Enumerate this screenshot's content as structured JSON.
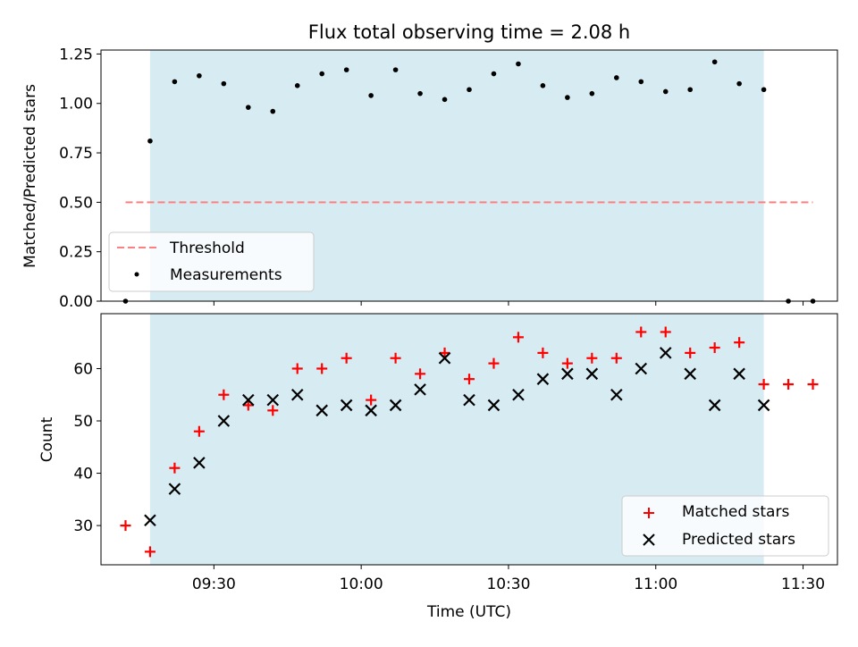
{
  "chart_data": [
    {
      "type": "scatter",
      "title": "Flux total observing time = 2.08 h",
      "ylabel": "Matched/Predicted stars",
      "xlabel": "",
      "xlim": [
        "09:07",
        "11:37"
      ],
      "ylim": [
        0,
        1.27
      ],
      "yticks": [
        "0.00",
        "0.25",
        "0.50",
        "0.75",
        "1.00",
        "1.25"
      ],
      "ytick_values": [
        0,
        0.25,
        0.5,
        0.75,
        1.0,
        1.25
      ],
      "xtick_values": [
        "09:30",
        "10:00",
        "10:30",
        "11:00",
        "11:30"
      ],
      "shaded_span": [
        "09:17",
        "11:22"
      ],
      "shade_color": "#add8e6",
      "legend_position": "lower-left",
      "series": [
        {
          "name": "Threshold",
          "style": "dashed-line",
          "color": "#ff7f7f",
          "x": [
            "09:12",
            "11:32"
          ],
          "y": [
            0.5,
            0.5
          ]
        },
        {
          "name": "Measurements",
          "style": "dot",
          "color": "#000000",
          "x": [
            "09:12",
            "09:17",
            "09:22",
            "09:27",
            "09:32",
            "09:37",
            "09:42",
            "09:47",
            "09:52",
            "09:57",
            "10:02",
            "10:07",
            "10:12",
            "10:17",
            "10:22",
            "10:27",
            "10:32",
            "10:37",
            "10:42",
            "10:47",
            "10:52",
            "10:57",
            "11:02",
            "11:07",
            "11:12",
            "11:17",
            "11:22",
            "11:27",
            "11:32"
          ],
          "y": [
            0.0,
            0.81,
            1.11,
            1.14,
            1.1,
            0.98,
            0.96,
            1.09,
            1.15,
            1.17,
            1.04,
            1.17,
            1.05,
            1.02,
            1.07,
            1.15,
            1.2,
            1.09,
            1.03,
            1.05,
            1.13,
            1.11,
            1.06,
            1.07,
            1.21,
            1.1,
            1.07,
            0.0,
            0.0
          ]
        }
      ]
    },
    {
      "type": "scatter",
      "title": "",
      "ylabel": "Count",
      "xlabel": "Time (UTC)",
      "xlim": [
        "09:07",
        "11:37"
      ],
      "ylim": [
        22.5,
        70.5
      ],
      "yticks": [
        "30",
        "40",
        "50",
        "60"
      ],
      "ytick_values": [
        30,
        40,
        50,
        60
      ],
      "xticks": [
        "09:30",
        "10:00",
        "10:30",
        "11:00",
        "11:30"
      ],
      "xtick_values": [
        "09:30",
        "10:00",
        "10:30",
        "11:00",
        "11:30"
      ],
      "shaded_span": [
        "09:17",
        "11:22"
      ],
      "shade_color": "#add8e6",
      "legend_position": "lower-right",
      "series": [
        {
          "name": "Matched stars",
          "style": "plus",
          "color": "#ff0000",
          "x": [
            "09:12",
            "09:17",
            "09:22",
            "09:27",
            "09:32",
            "09:37",
            "09:42",
            "09:47",
            "09:52",
            "09:57",
            "10:02",
            "10:07",
            "10:12",
            "10:17",
            "10:22",
            "10:27",
            "10:32",
            "10:37",
            "10:42",
            "10:47",
            "10:52",
            "10:57",
            "11:02",
            "11:07",
            "11:12",
            "11:17",
            "11:22",
            "11:27",
            "11:32"
          ],
          "y": [
            30,
            25,
            41,
            48,
            55,
            53,
            52,
            60,
            60,
            62,
            54,
            62,
            59,
            63,
            58,
            61,
            66,
            63,
            61,
            62,
            62,
            67,
            67,
            63,
            64,
            65,
            57,
            57,
            57
          ]
        },
        {
          "name": "Predicted stars",
          "style": "x",
          "color": "#000000",
          "x": [
            "09:17",
            "09:22",
            "09:27",
            "09:32",
            "09:37",
            "09:42",
            "09:47",
            "09:52",
            "09:57",
            "10:02",
            "10:07",
            "10:12",
            "10:17",
            "10:22",
            "10:27",
            "10:32",
            "10:37",
            "10:42",
            "10:47",
            "10:52",
            "10:57",
            "11:02",
            "11:07",
            "11:12",
            "11:17",
            "11:22"
          ],
          "y": [
            31,
            37,
            42,
            50,
            54,
            54,
            55,
            52,
            53,
            52,
            53,
            56,
            62,
            54,
            53,
            55,
            58,
            59,
            59,
            55,
            60,
            63,
            59,
            53,
            59,
            53
          ]
        }
      ]
    }
  ]
}
